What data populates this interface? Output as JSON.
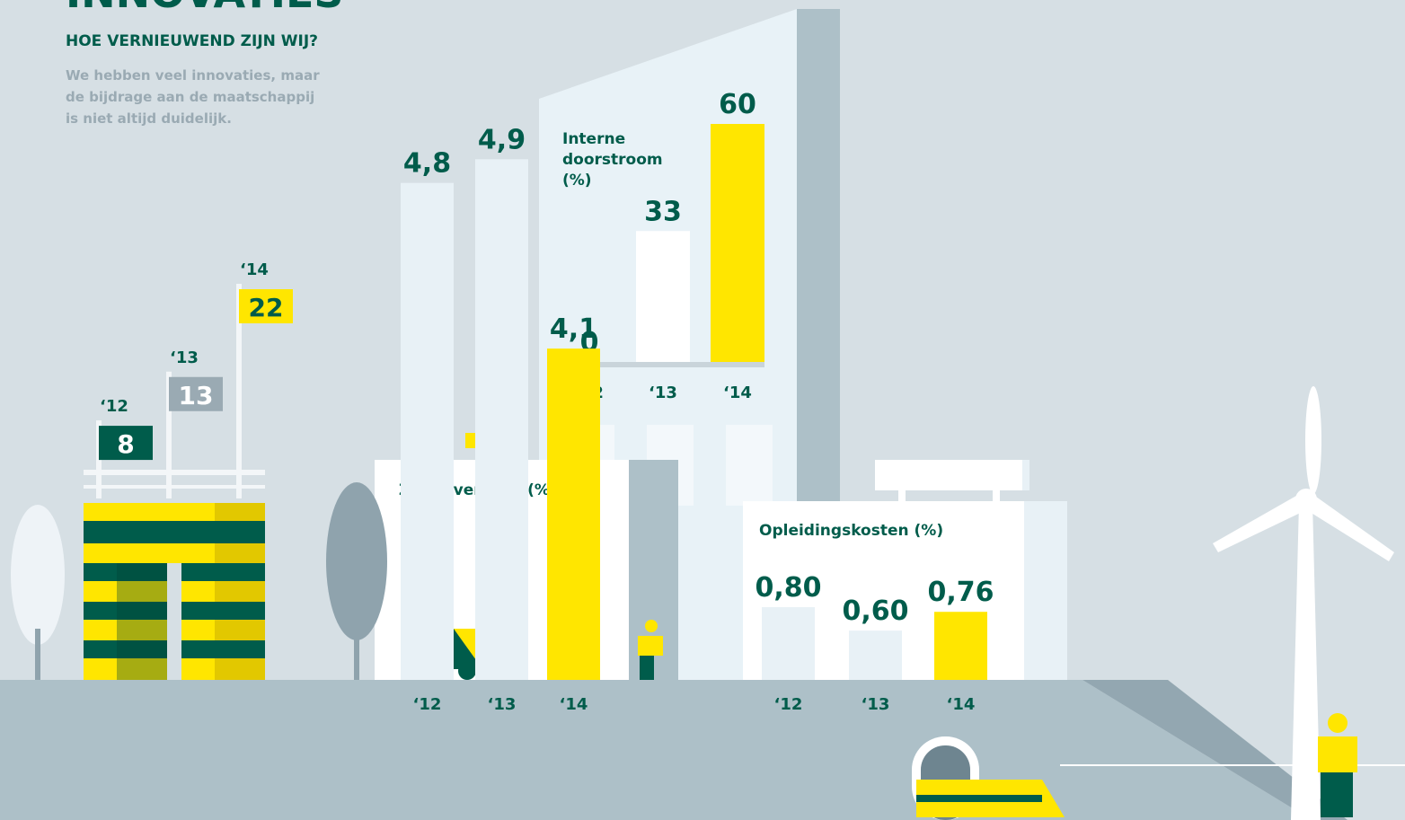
{
  "header": {
    "title": "INNOVATIES",
    "subtitle": "HOE VERNIEUWEND ZIJN WIJ?",
    "intro": [
      "We hebben veel innovaties, maar",
      "de bijdrage aan de maatschappij",
      "is niet altijd duidelijk."
    ]
  },
  "chart_data": [
    {
      "type": "flag",
      "categories": [
        "‘12",
        "‘13",
        "‘14"
      ],
      "values": [
        8,
        13,
        22
      ],
      "colors": [
        "#005c4b",
        "#9aaab3",
        "#ffe600"
      ],
      "label_colors": [
        "#ffffff",
        "#ffffff",
        "#005c4b"
      ],
      "ylim": [
        0,
        22
      ]
    },
    {
      "type": "bar",
      "title": "Interne doorstroom (%)",
      "categories": [
        "‘12",
        "‘13",
        "‘14"
      ],
      "values": [
        0,
        33,
        60
      ],
      "colors": [
        "#ffffff",
        "#ffffff",
        "#ffe600"
      ],
      "ylim": [
        0,
        60
      ]
    },
    {
      "type": "bar",
      "title": "Ziekteverzuim (%)",
      "categories": [
        "‘12",
        "‘13",
        "‘14"
      ],
      "values": [
        4.8,
        4.9,
        4.1
      ],
      "value_labels": [
        "4,8",
        "4,9",
        "4,1"
      ],
      "colors": [
        "#e8f1f6",
        "#e8f1f6",
        "#ffe600"
      ],
      "ylim": [
        2.7,
        5.0
      ]
    },
    {
      "type": "bar",
      "title": "Opleidingskosten (%)",
      "categories": [
        "‘12",
        "‘13",
        "‘14"
      ],
      "values": [
        0.8,
        0.6,
        0.76
      ],
      "value_labels": [
        "0,80",
        "0,60",
        "0,76"
      ],
      "colors": [
        "#e8f1f6",
        "#e8f1f6",
        "#ffe600"
      ],
      "ylim": [
        0.18,
        0.8
      ]
    }
  ]
}
